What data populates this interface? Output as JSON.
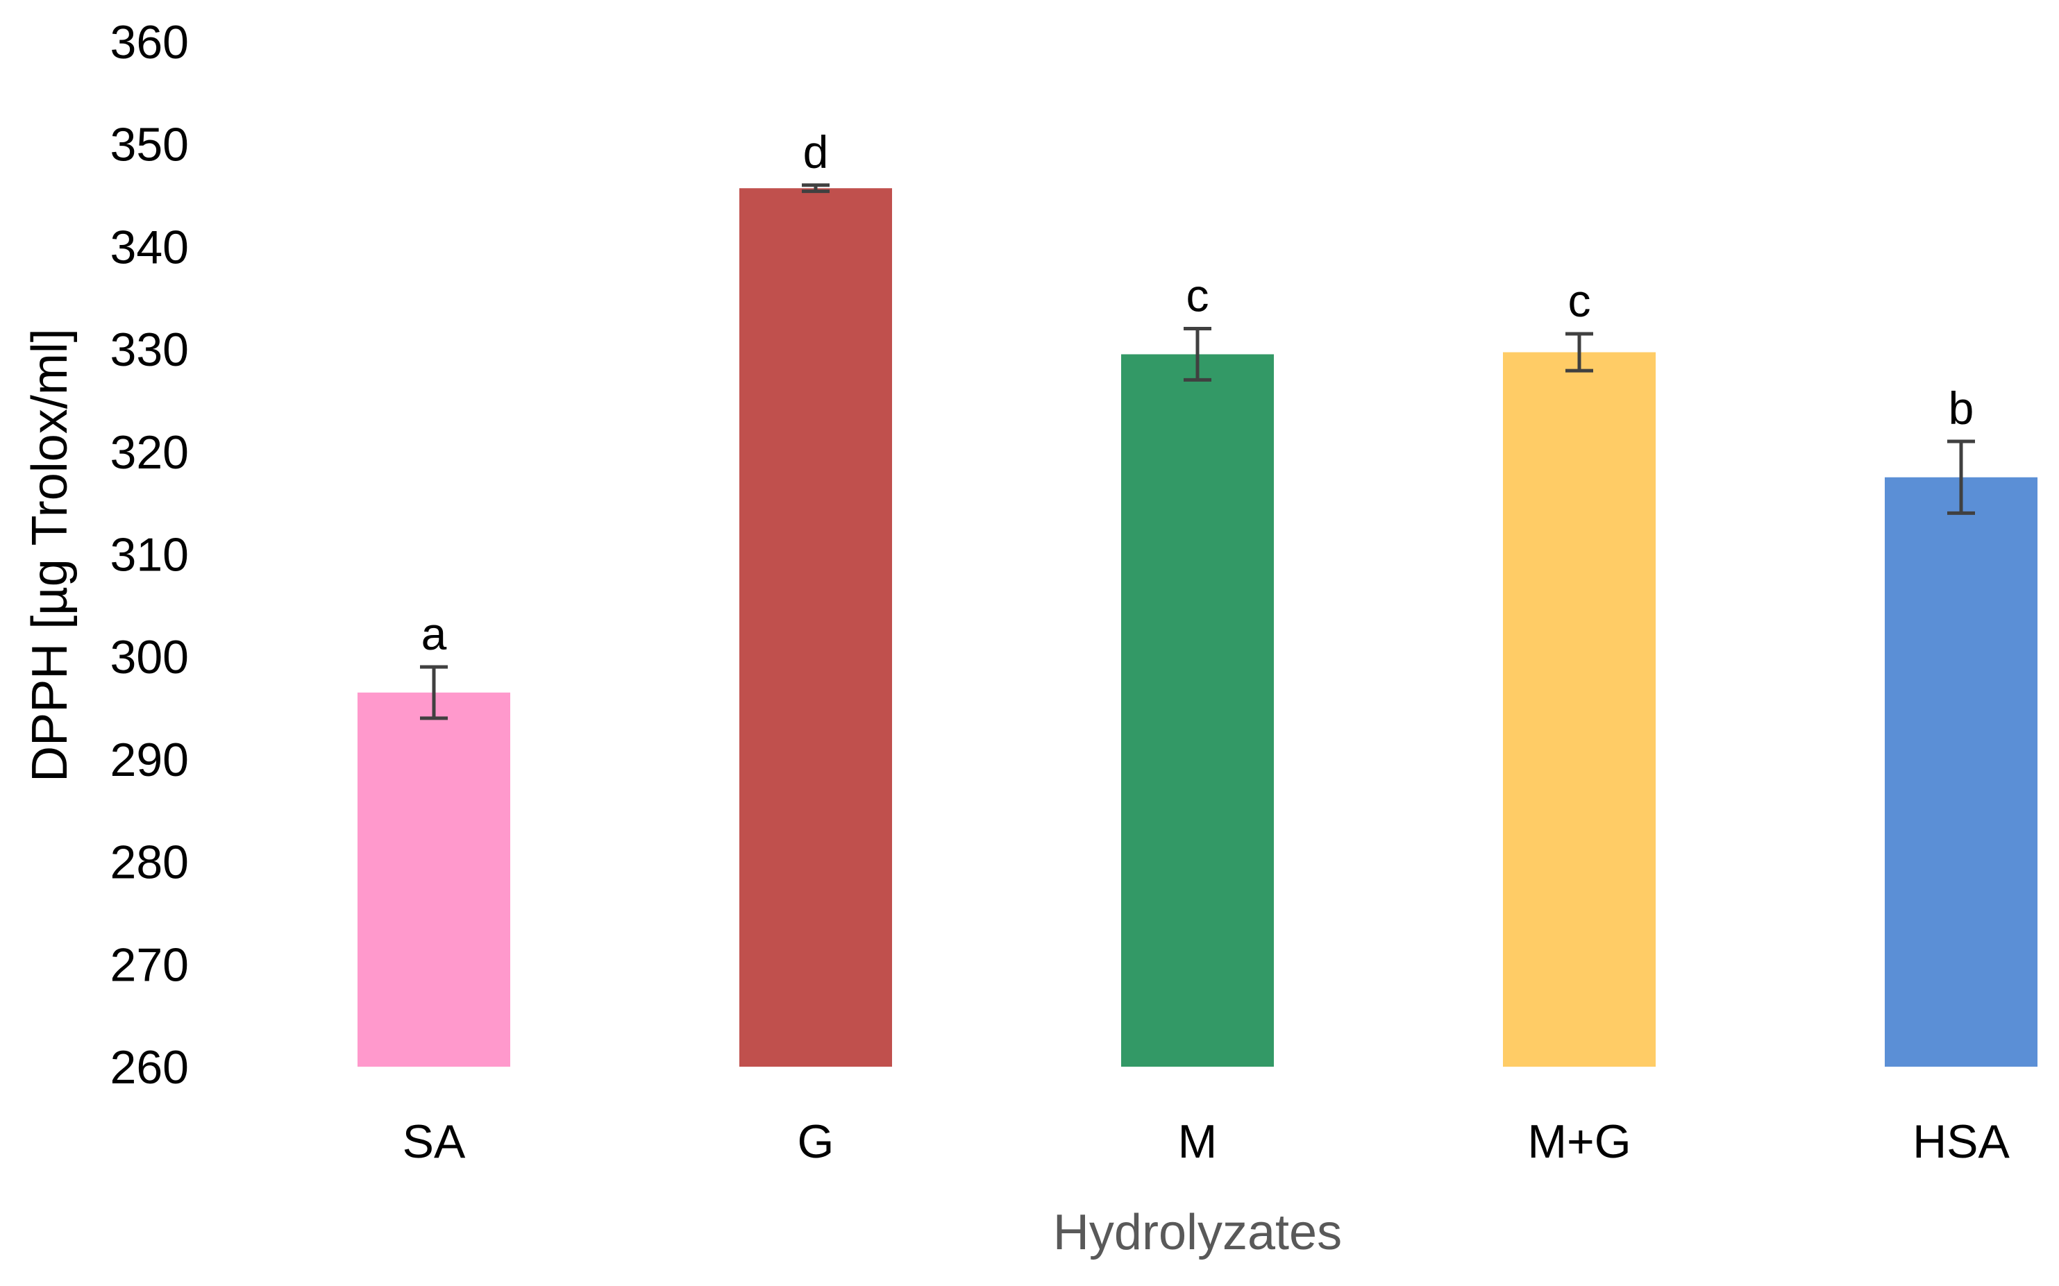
{
  "chart_data": {
    "type": "bar",
    "title": "",
    "xlabel": "Hydrolyzates",
    "ylabel": "DPPH [µg Trolox/ml]",
    "ylim": [
      260,
      360
    ],
    "yticks": [
      260,
      270,
      280,
      290,
      300,
      310,
      320,
      330,
      340,
      350,
      360
    ],
    "grid": false,
    "legend": "none",
    "categories": [
      "SA",
      "G",
      "M",
      "M+G",
      "HSA"
    ],
    "values": [
      296.5,
      345.7,
      329.5,
      329.7,
      317.5
    ],
    "errors": [
      2.5,
      0.3,
      2.5,
      1.8,
      3.5
    ],
    "significance_labels": [
      "a",
      "d",
      "c",
      "c",
      "b"
    ],
    "colors": [
      "#FF99CC",
      "#C0504D",
      "#339966",
      "#FFCC66",
      "#5B8FD6"
    ],
    "xlabel_color": "#595959",
    "ylabel_color": "#000000",
    "error_bar_color": "#404040"
  }
}
